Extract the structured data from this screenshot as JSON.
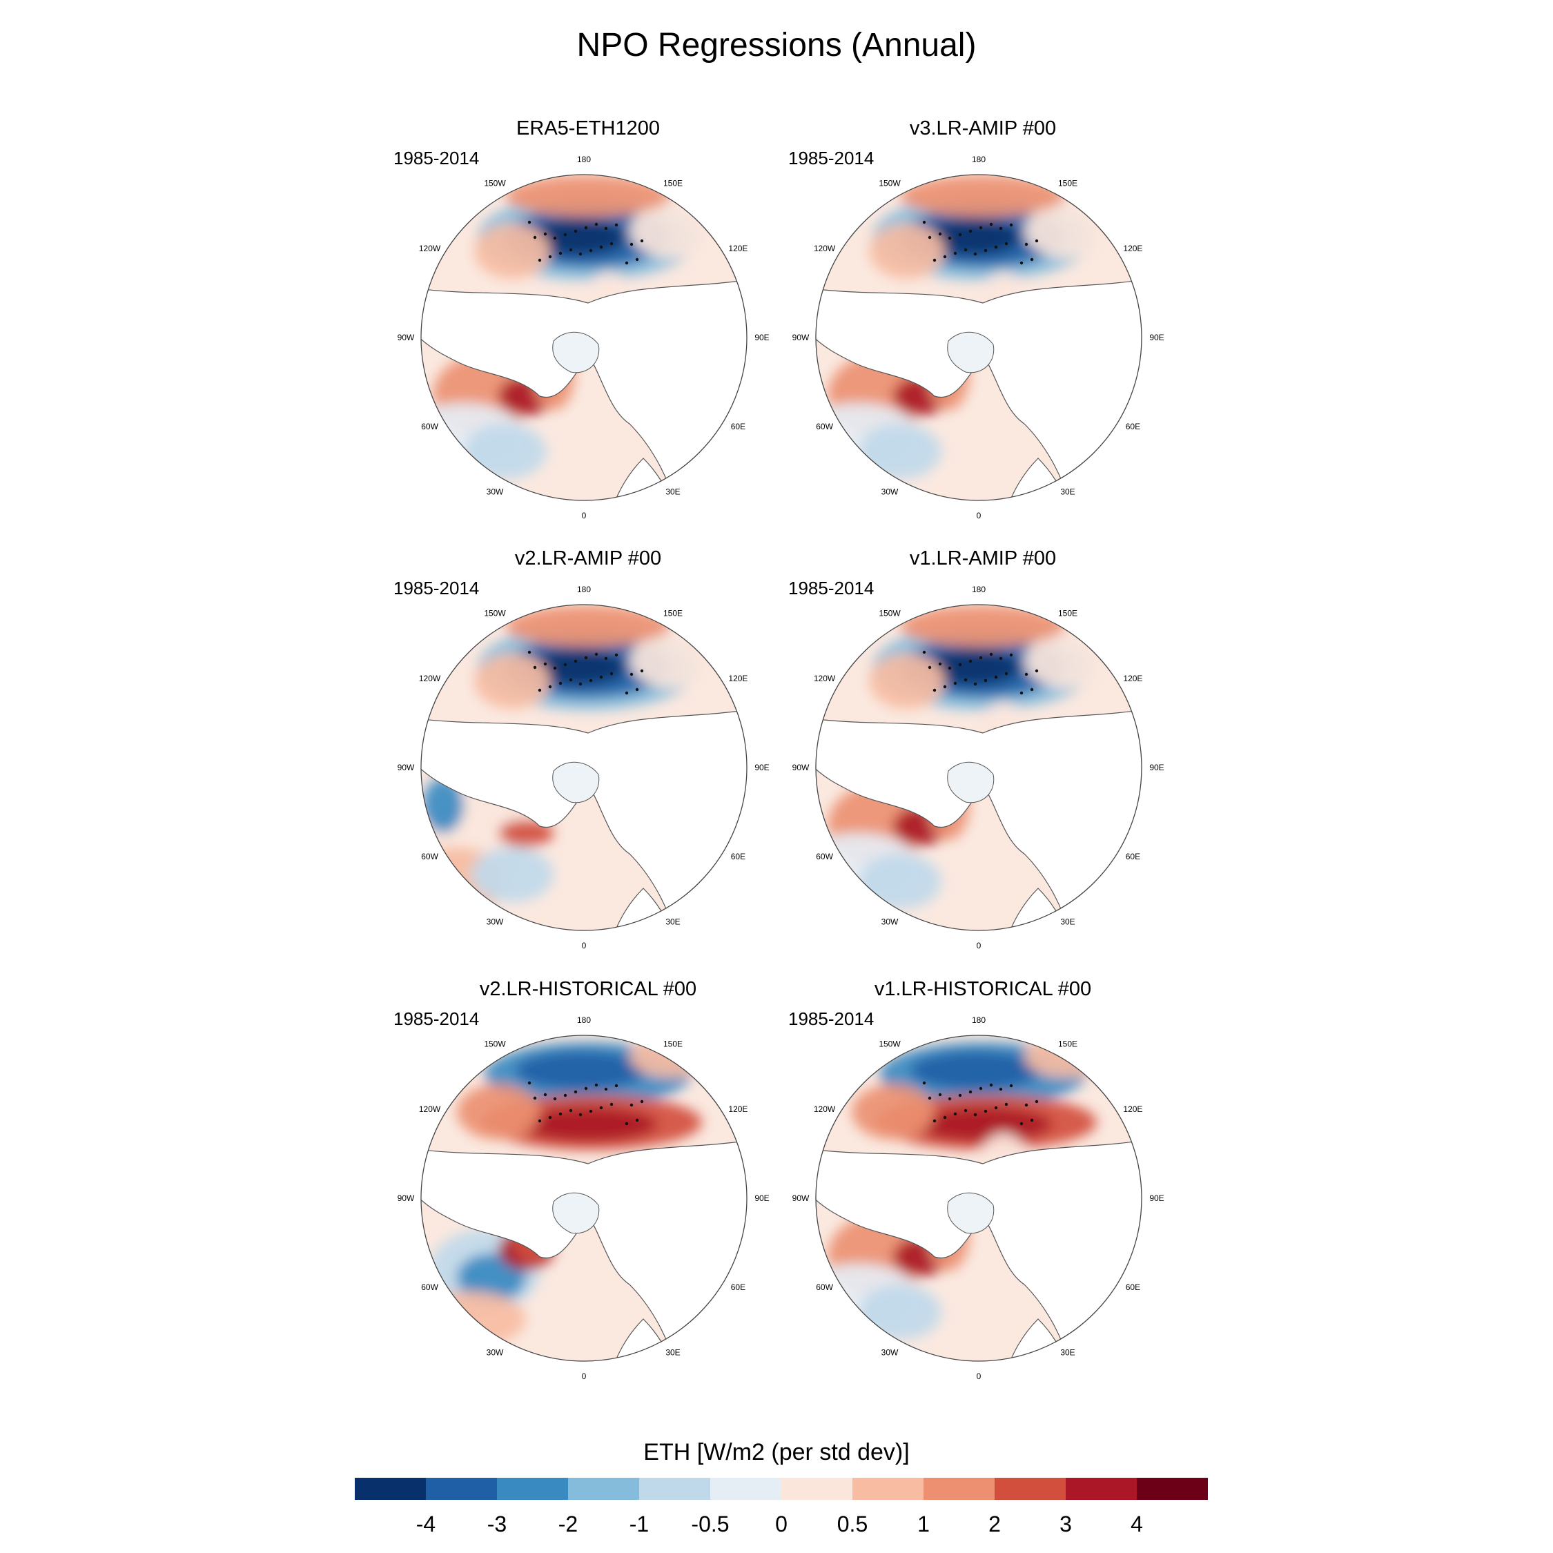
{
  "title": "NPO Regressions (Annual)",
  "longitude_labels": {
    "n": "180",
    "nw1": "150W",
    "ne1": "150E",
    "nw2": "120W",
    "ne2": "120E",
    "w": "90W",
    "e": "90E",
    "sw2": "60W",
    "se2": "60E",
    "sw1": "30W",
    "se1": "30E",
    "s": "0"
  },
  "panels": [
    {
      "title": "ERA5-ETH1200",
      "period": "1985-2014",
      "pacific": "negative",
      "atlantic": "mixed"
    },
    {
      "title": "v3.LR-AMIP  #00",
      "period": "1985-2014",
      "pacific": "negative",
      "atlantic": "mixed"
    },
    {
      "title": "v2.LR-AMIP  #00",
      "period": "1985-2014",
      "pacific": "negative",
      "atlantic": "weak"
    },
    {
      "title": "v1.LR-AMIP  #00",
      "period": "1985-2014",
      "pacific": "negative",
      "atlantic": "mixed"
    },
    {
      "title": "v2.LR-HISTORICAL  #00",
      "period": "1985-2014",
      "pacific": "dipole",
      "atlantic": "negative"
    },
    {
      "title": "v1.LR-HISTORICAL  #00",
      "period": "1985-2014",
      "pacific": "dipole",
      "atlantic": "mixed"
    }
  ],
  "colorbar": {
    "title": "ETH [W/m2 (per std dev)]",
    "labels": [
      "-4",
      "-3",
      "-2",
      "-1",
      "-0.5",
      "0",
      "0.5",
      "1",
      "2",
      "3",
      "4"
    ],
    "colors": [
      "#08306b",
      "#1f5fa6",
      "#3a8ac2",
      "#85bcdb",
      "#c0d9ea",
      "#e6eef5",
      "#fbe6dc",
      "#f7bca2",
      "#ec9071",
      "#d24f3d",
      "#ab1727",
      "#6b0016"
    ]
  }
}
